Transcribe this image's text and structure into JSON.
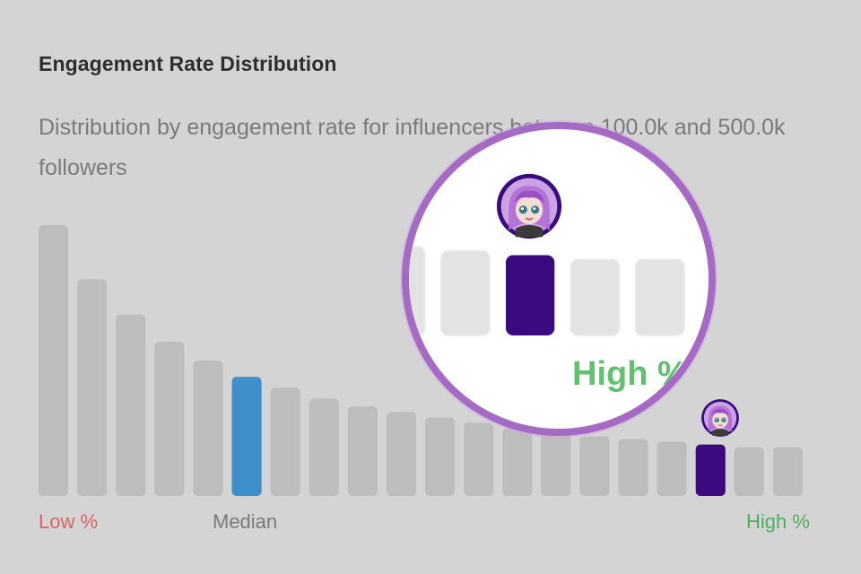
{
  "header": {
    "title": "Engagement Rate Distribution",
    "subtitle": "Distribution by engagement rate for influencers between 100.0k and 500.0k followers"
  },
  "labels": {
    "low": "Low %",
    "median": "Median",
    "high": "High %"
  },
  "colors": {
    "bar": "#bdbdbd",
    "median_bar": "#3e8fca",
    "highlight_bar": "#3a0a7e",
    "low_label": "#d86565",
    "high_label": "#4fae5c"
  },
  "avatar_icon": "influencer-avatar-icon",
  "chart_data": {
    "type": "bar",
    "title": "Engagement Rate Distribution",
    "subtitle": "Distribution by engagement rate for influencers between 100.0k and 500.0k followers",
    "xlabel": "",
    "ylabel": "",
    "values": [
      100,
      80,
      67,
      57,
      50,
      44,
      40,
      36,
      33,
      31,
      29,
      27,
      25,
      24,
      22,
      21,
      20,
      19,
      18,
      18
    ],
    "median_index": 5,
    "highlight_index": 17,
    "grid": false,
    "legend": "none"
  }
}
